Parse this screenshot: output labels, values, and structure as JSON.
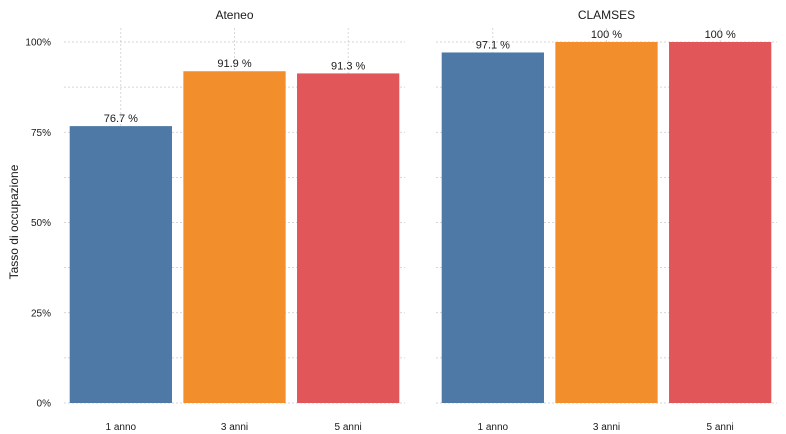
{
  "chart_data": {
    "type": "bar",
    "ylabel": "Tasso di occupazione",
    "xlabel": "",
    "ylim": [
      0,
      100
    ],
    "y_ticks": [
      "0%",
      "25%",
      "50%",
      "75%",
      "100%"
    ],
    "grid": true,
    "colors": [
      "#4e79a7",
      "#f28e2b",
      "#e15759"
    ],
    "categories": [
      "1 anno",
      "3 anni",
      "5 anni"
    ],
    "panels": [
      {
        "title": "Ateneo",
        "values": [
          76.7,
          91.9,
          91.3
        ],
        "labels": [
          "76.7 %",
          "91.9 %",
          "91.3 %"
        ]
      },
      {
        "title": "CLAMSES",
        "values": [
          97.1,
          100,
          100
        ],
        "labels": [
          "97.1 %",
          "100 %",
          "100 %"
        ]
      }
    ]
  }
}
